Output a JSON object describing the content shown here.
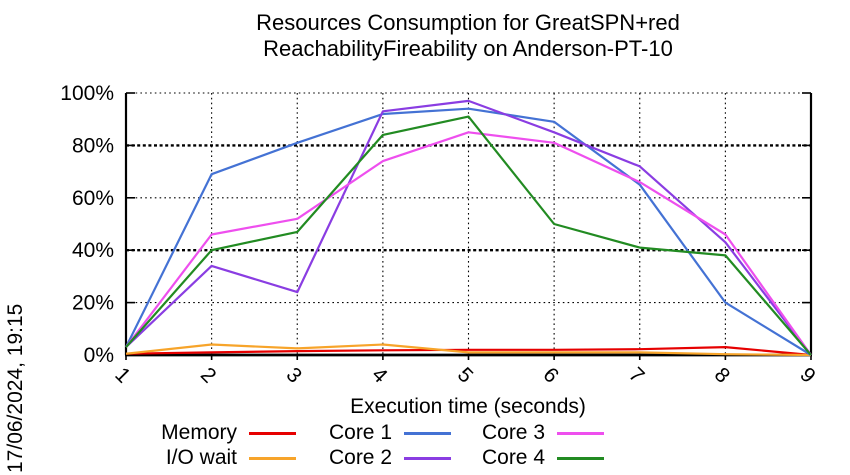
{
  "title": {
    "line1": "Resources Consumption for GreatSPN+red",
    "line2": "ReachabilityFireability on Anderson-PT-10"
  },
  "timestamp": "17/06/2024, 19:15",
  "chart_data": {
    "type": "line",
    "title": "Resources Consumption for GreatSPN+red ReachabilityFireability on Anderson-PT-10",
    "xlabel": "Execution time (seconds)",
    "ylabel": "",
    "x": [
      1,
      2,
      3,
      4,
      5,
      6,
      7,
      8,
      9
    ],
    "xlim": [
      1,
      9
    ],
    "ylim": [
      0,
      100
    ],
    "grid": true,
    "legend_position": "bottom",
    "yticks": [
      {
        "label": "0%",
        "value": 0
      },
      {
        "label": "20%",
        "value": 20
      },
      {
        "label": "40%",
        "value": 40
      },
      {
        "label": "60%",
        "value": 60
      },
      {
        "label": "80%",
        "value": 80
      },
      {
        "label": "100%",
        "value": 100
      }
    ],
    "series": [
      {
        "name": "Memory",
        "color": "#e60000",
        "values": [
          0.5,
          1,
          1.5,
          1.8,
          2,
          2,
          2.2,
          3,
          0
        ]
      },
      {
        "name": "I/O wait",
        "color": "#f7a42a",
        "values": [
          0.5,
          4,
          2.5,
          4,
          1,
          1,
          1,
          0.3,
          0
        ]
      },
      {
        "name": "Core 1",
        "color": "#4472d4",
        "values": [
          3,
          69,
          81,
          92,
          94,
          89,
          65,
          20,
          0
        ]
      },
      {
        "name": "Core 2",
        "color": "#8a3de2",
        "values": [
          3,
          34,
          24,
          93,
          97,
          85,
          72,
          43,
          0
        ]
      },
      {
        "name": "Core 3",
        "color": "#ee4fee",
        "values": [
          3,
          46,
          52,
          74,
          85,
          81,
          66,
          46,
          0
        ]
      },
      {
        "name": "Core 4",
        "color": "#228b22",
        "values": [
          3,
          40,
          47,
          84,
          91,
          50,
          41,
          38,
          0
        ]
      }
    ]
  }
}
